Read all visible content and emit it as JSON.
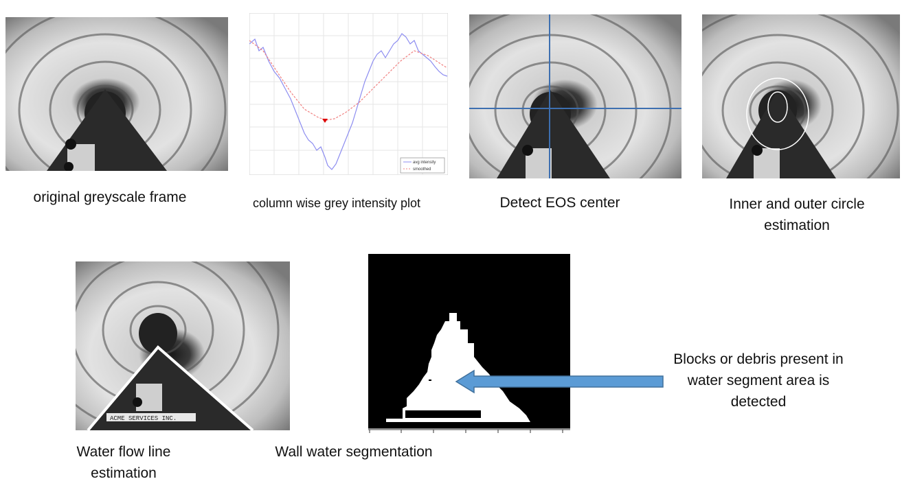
{
  "captions": {
    "original": "original greyscale frame",
    "intensity_plot": "column wise grey intensity plot",
    "eos_center": "Detect EOS center",
    "circles": "Inner and outer circle estimation",
    "flow_line": "Water flow line estimation",
    "segmentation": "Wall water segmentation"
  },
  "annotation": {
    "debris_note": "Blocks or debris present in water segment area is detected",
    "arrow_color": "#5B9BD5"
  },
  "overlay": {
    "frame_text": "ACME SERVICES INC."
  },
  "plot": {
    "legend": [
      "avg intensity",
      "smoothed"
    ],
    "series_colors": [
      "#8c8cf0",
      "#f08080"
    ],
    "marker_color": "#dd0000"
  }
}
